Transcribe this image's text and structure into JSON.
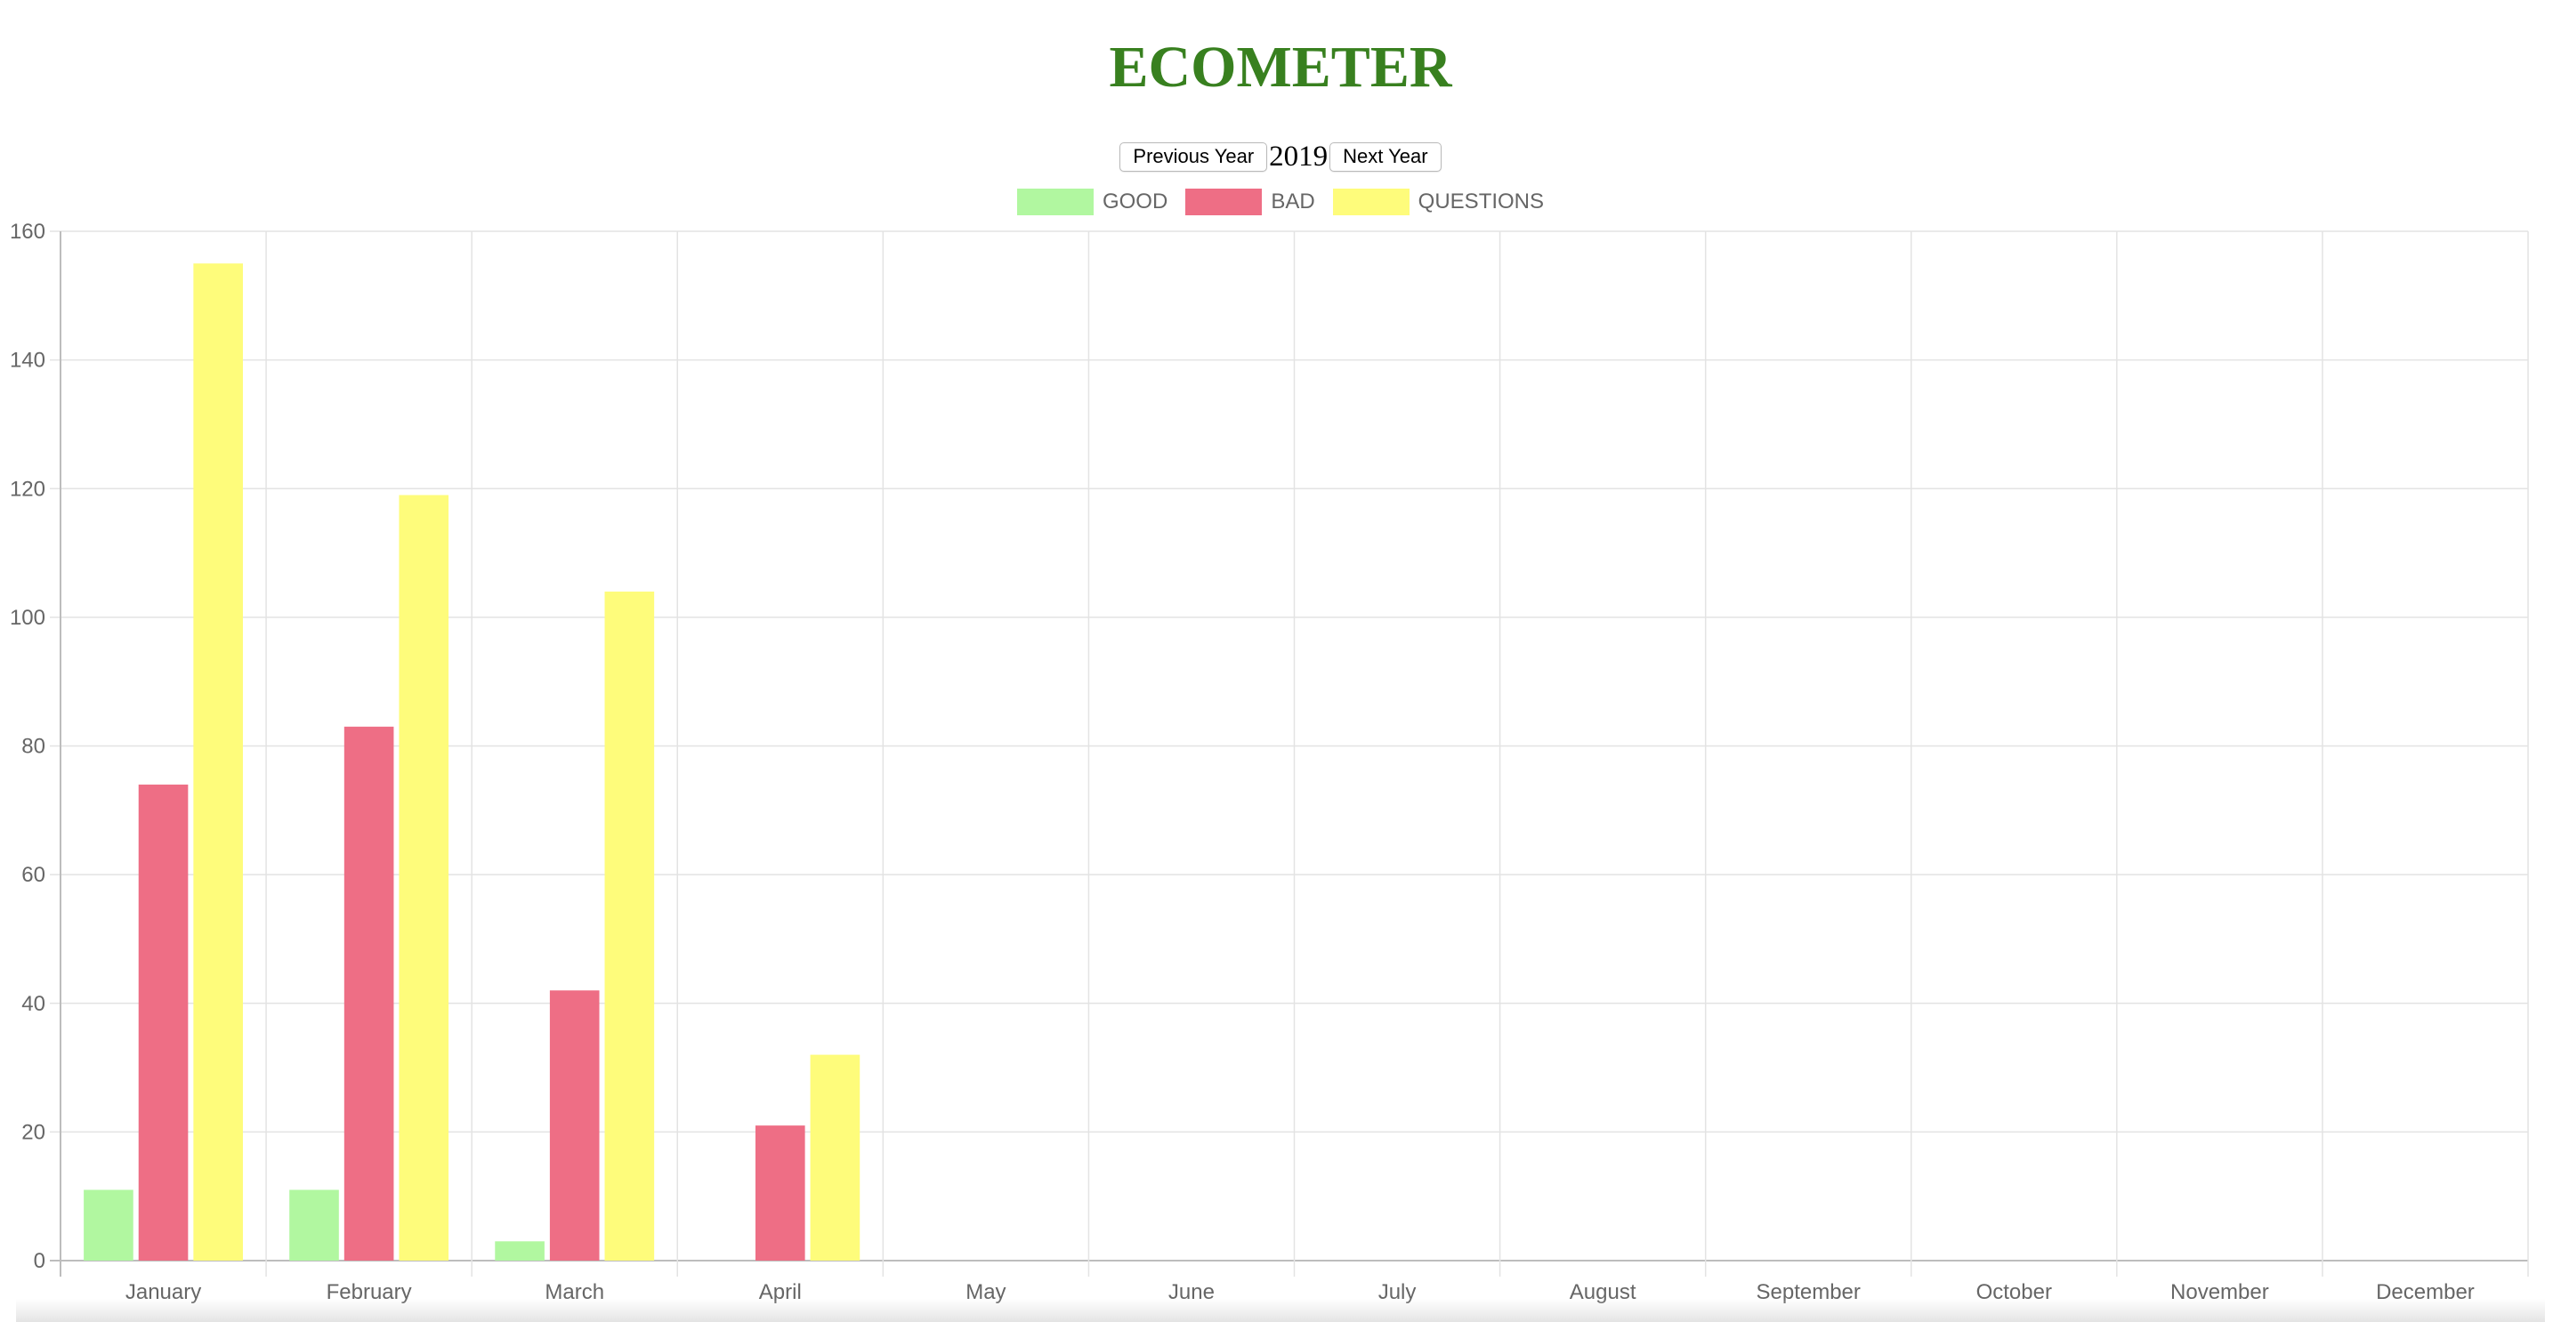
{
  "header": {
    "title": "ECOMETER"
  },
  "year_nav": {
    "prev_label": "Previous Year",
    "year": "2019",
    "next_label": "Next Year"
  },
  "colors": {
    "title": "#38801f",
    "good": "#b1f7a0",
    "bad": "#ee6e85",
    "questions": "#fefc7b",
    "grid": "#e3e3e3",
    "tick_text": "#666666"
  },
  "chart_data": {
    "type": "bar",
    "categories": [
      "January",
      "February",
      "March",
      "April",
      "May",
      "June",
      "July",
      "August",
      "September",
      "October",
      "November",
      "December"
    ],
    "series": [
      {
        "name": "GOOD",
        "color": "#b1f7a0",
        "values": [
          11,
          11,
          3,
          0,
          0,
          0,
          0,
          0,
          0,
          0,
          0,
          0
        ]
      },
      {
        "name": "BAD",
        "color": "#ee6e85",
        "values": [
          74,
          83,
          42,
          21,
          0,
          0,
          0,
          0,
          0,
          0,
          0,
          0
        ]
      },
      {
        "name": "QUESTIONS",
        "color": "#fefc7b",
        "values": [
          155,
          119,
          104,
          32,
          0,
          0,
          0,
          0,
          0,
          0,
          0,
          0
        ]
      }
    ],
    "ylim": [
      0,
      160
    ],
    "yticks": [
      0,
      20,
      40,
      60,
      80,
      100,
      120,
      140,
      160
    ],
    "grid": true,
    "legend_position": "top"
  }
}
